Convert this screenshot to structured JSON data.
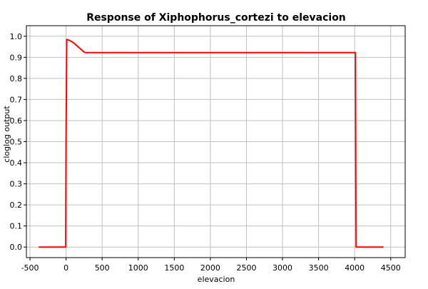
{
  "chart_data": {
    "type": "line",
    "title": "Response of Xiphophorus_cortezi to elevacion",
    "xlabel": "elevacion",
    "ylabel": "cloglog output",
    "xlim": [
      -550,
      4700
    ],
    "ylim": [
      -0.05,
      1.05
    ],
    "xticks": [
      -500,
      0,
      500,
      1000,
      1500,
      2000,
      2500,
      3000,
      3500,
      4000,
      4500
    ],
    "yticks": [
      0.0,
      0.1,
      0.2,
      0.3,
      0.4,
      0.5,
      0.6,
      0.7,
      0.8,
      0.9,
      1.0
    ],
    "xtick_labels": [
      "-500",
      "0",
      "500",
      "1000",
      "1500",
      "2000",
      "2500",
      "3000",
      "3500",
      "4000",
      "4500"
    ],
    "ytick_labels": [
      "0.0",
      "0.1",
      "0.2",
      "0.3",
      "0.4",
      "0.5",
      "0.6",
      "0.7",
      "0.8",
      "0.9",
      "1.0"
    ],
    "grid": true,
    "series": [
      {
        "color": "#ff0000",
        "x": [
          -380,
          -5,
          0,
          10,
          50,
          100,
          150,
          200,
          250,
          270,
          1000,
          2000,
          3000,
          4000,
          4010,
          4020,
          4030,
          4400
        ],
        "y": [
          0.0,
          0.0,
          0.5,
          0.985,
          0.98,
          0.97,
          0.955,
          0.94,
          0.925,
          0.922,
          0.922,
          0.922,
          0.922,
          0.922,
          0.922,
          0.0,
          0.0,
          0.0
        ]
      }
    ]
  }
}
